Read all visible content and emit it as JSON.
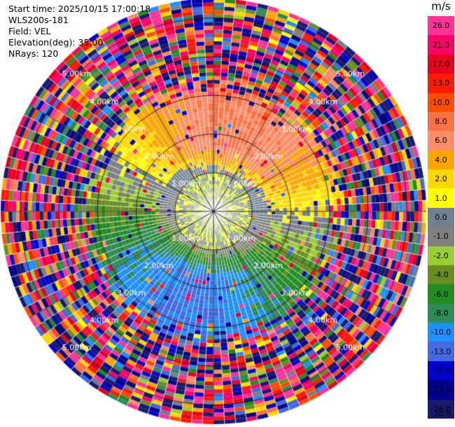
{
  "info": {
    "start_time": "Start time: 2025/10/15 17:00:18",
    "station": "WLS200s-181",
    "field": "Field: VEL",
    "elevation": "Elevation(deg): 35.00",
    "nrays": "NRays: 120"
  },
  "colorbar": {
    "unit": "m/s",
    "levels": [
      "26.0",
      "21.0",
      "17.0",
      "13.0",
      "10.0",
      "8.0",
      "6.0",
      "4.0",
      "2.0",
      "1.0",
      "0.0",
      "-1.0",
      "-2.0",
      "-4.0",
      "-6.0",
      "-8.0",
      "-10.0",
      "-13.0",
      "-17.0",
      "-21.0",
      "-26.0",
      "-30.0"
    ],
    "colors": [
      "#ff3399",
      "#ff0066",
      "#e6001e",
      "#ff1a00",
      "#ff4d00",
      "#ff7043",
      "#ff8c69",
      "#ffa500",
      "#ffd700",
      "#ffff00",
      "#708090",
      "#808080",
      "#9acd32",
      "#6b8e23",
      "#228b22",
      "#2e8b57",
      "#1e90ff",
      "#4169e1",
      "#0000cd",
      "#00008b",
      "#191970"
    ]
  },
  "chart_data": {
    "type": "heatmap",
    "title": "",
    "field": "VEL",
    "units": "m/s",
    "elevation_deg": 35.0,
    "n_rays": 120,
    "range_rings_km": [
      1.0,
      2.0,
      3.0,
      4.0,
      5.0
    ],
    "range_ring_labels": [
      "1.00km",
      "2.00km",
      "3.00km",
      "4.00km",
      "5.00km"
    ],
    "max_range_km": 5.5,
    "pattern": {
      "near_center_0_to_1km": "0.0 to -1.0 (gray)",
      "north_west_1_to_3km": "4.0 to 8.0 (orange/yellow)",
      "north_east_1_to_3km": "10.0 to 13.0 (red-orange)",
      "south_west_1_to_3km": "-4.0 to -10.0 (green/blue)",
      "south_east_1_to_3km": "-2.0 to -6.0 (green)",
      "beyond_3km": "noise, all values"
    }
  }
}
